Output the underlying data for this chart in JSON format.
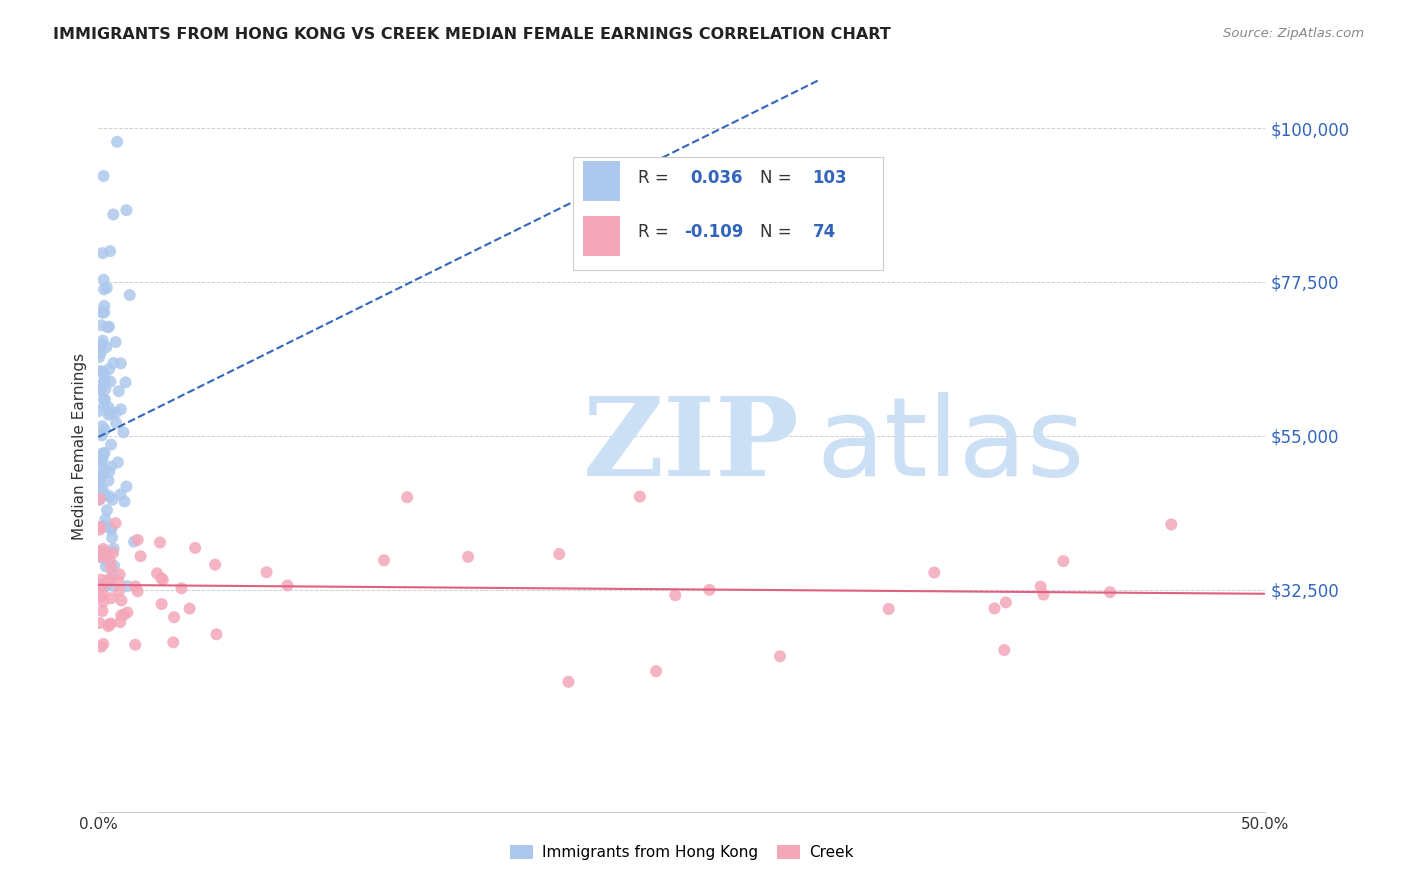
{
  "title": "IMMIGRANTS FROM HONG KONG VS CREEK MEDIAN FEMALE EARNINGS CORRELATION CHART",
  "source": "Source: ZipAtlas.com",
  "ylabel": "Median Female Earnings",
  "xlim": [
    0.0,
    0.5
  ],
  "ylim": [
    0,
    107000
  ],
  "blue_R": "0.036",
  "blue_N": "103",
  "pink_R": "-0.109",
  "pink_N": "74",
  "blue_color": "#adc8ed",
  "pink_color": "#f4a7b9",
  "blue_line_color": "#3366bb",
  "pink_line_color": "#e06080",
  "blue_line_style": "--",
  "pink_line_style": "-",
  "ytick_vals": [
    0,
    32500,
    55000,
    77500,
    100000
  ],
  "ytick_labels": [
    "",
    "$32,500",
    "$55,000",
    "$77,500",
    "$100,000"
  ],
  "watermark_top": "ZIP",
  "watermark_bot": "atlas",
  "watermark_color": "#cce0f5",
  "background_color": "#ffffff",
  "grid_color": "#d0d0d0",
  "blue_line_intercept": 54000,
  "blue_line_slope": 50000,
  "pink_line_intercept": 34500,
  "pink_line_slope": -4000
}
